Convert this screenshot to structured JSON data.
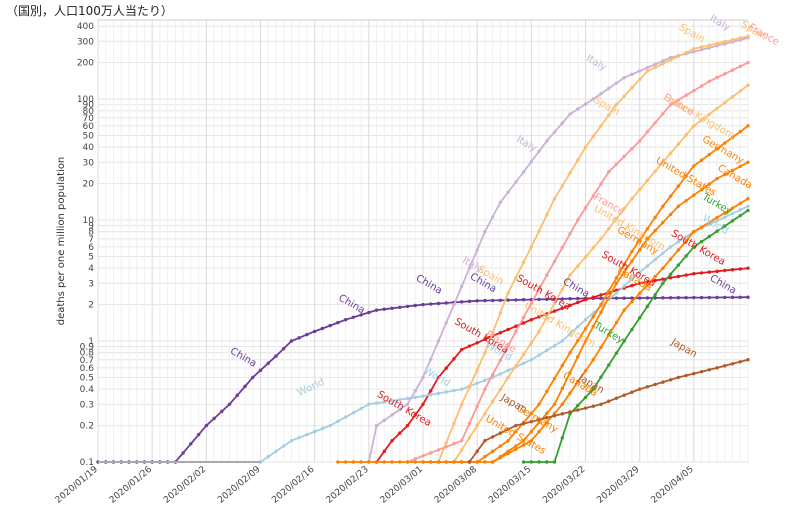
{
  "caption": "（国別，人口100万人当たり）",
  "chart_data": {
    "type": "line",
    "ylabel": "deaths per one million population",
    "yscale": "log",
    "ylim": [
      0.1,
      450
    ],
    "xlim": [
      "2020-01-19",
      "2020-04-12"
    ],
    "grid": true,
    "x_ticks": [
      "2020/01/19",
      "2020/01/26",
      "2020/02/02",
      "2020/02/09",
      "2020/02/16",
      "2020/02/23",
      "2020/03/01",
      "2020/03/08",
      "2020/03/15",
      "2020/03/22",
      "2020/03/29",
      "2020/04/05"
    ],
    "y_ticks": [
      "0.1",
      "0.2",
      "0.3",
      "0.4",
      "0.5",
      "0.6",
      "0.7",
      "0.8",
      "0.9",
      "1",
      "2",
      "3",
      "4",
      "5",
      "6",
      "7",
      "8",
      "9",
      "10",
      "20",
      "30",
      "40",
      "50",
      "60",
      "70",
      "80",
      "90",
      "100",
      "200",
      "300",
      "400"
    ],
    "series": [
      {
        "name": "China",
        "color": "#6a3d9a",
        "points": [
          [
            "2020-01-19",
            0.1
          ],
          [
            "2020-01-29",
            0.1
          ],
          [
            "2020-02-02",
            0.2
          ],
          [
            "2020-02-05",
            0.3
          ],
          [
            "2020-02-08",
            0.5
          ],
          [
            "2020-02-11",
            0.75
          ],
          [
            "2020-02-13",
            1.0
          ],
          [
            "2020-02-16",
            1.2
          ],
          [
            "2020-02-20",
            1.5
          ],
          [
            "2020-02-24",
            1.8
          ],
          [
            "2020-03-01",
            2.0
          ],
          [
            "2020-03-08",
            2.15
          ],
          [
            "2020-03-15",
            2.2
          ],
          [
            "2020-03-22",
            2.25
          ],
          [
            "2020-04-12",
            2.3
          ]
        ]
      },
      {
        "name": "South Korea",
        "color": "#e31a1c",
        "points": [
          [
            "2020-02-24",
            0.1
          ],
          [
            "2020-02-26",
            0.15
          ],
          [
            "2020-02-28",
            0.2
          ],
          [
            "2020-03-01",
            0.3
          ],
          [
            "2020-03-03",
            0.5
          ],
          [
            "2020-03-06",
            0.85
          ],
          [
            "2020-03-10",
            1.1
          ],
          [
            "2020-03-15",
            1.5
          ],
          [
            "2020-03-22",
            2.2
          ],
          [
            "2020-03-29",
            3.0
          ],
          [
            "2020-04-05",
            3.6
          ],
          [
            "2020-04-12",
            4.0
          ]
        ]
      },
      {
        "name": "World",
        "color": "#a6cee3",
        "points": [
          [
            "2020-02-09",
            0.1
          ],
          [
            "2020-02-13",
            0.15
          ],
          [
            "2020-02-18",
            0.2
          ],
          [
            "2020-02-23",
            0.3
          ],
          [
            "2020-03-01",
            0.35
          ],
          [
            "2020-03-06",
            0.4
          ],
          [
            "2020-03-10",
            0.5
          ],
          [
            "2020-03-15",
            0.7
          ],
          [
            "2020-03-19",
            1.0
          ],
          [
            "2020-03-22",
            1.5
          ],
          [
            "2020-03-26",
            2.5
          ],
          [
            "2020-03-29",
            3.7
          ],
          [
            "2020-04-02",
            6.0
          ],
          [
            "2020-04-05",
            8.0
          ],
          [
            "2020-04-12",
            13.0
          ]
        ]
      },
      {
        "name": "Italy",
        "color": "#cab2d6",
        "points": [
          [
            "2020-02-23",
            0.1
          ],
          [
            "2020-02-24",
            0.2
          ],
          [
            "2020-02-28",
            0.3
          ],
          [
            "2020-03-01",
            0.5
          ],
          [
            "2020-03-03",
            1.0
          ],
          [
            "2020-03-05",
            2.0
          ],
          [
            "2020-03-07",
            4.0
          ],
          [
            "2020-03-09",
            8.0
          ],
          [
            "2020-03-11",
            14.0
          ],
          [
            "2020-03-14",
            25.0
          ],
          [
            "2020-03-17",
            45.0
          ],
          [
            "2020-03-20",
            75.0
          ],
          [
            "2020-03-23",
            100.0
          ],
          [
            "2020-03-27",
            150.0
          ],
          [
            "2020-04-02",
            220.0
          ],
          [
            "2020-04-12",
            320.0
          ]
        ]
      },
      {
        "name": "Spain",
        "color": "#fdbf6f",
        "points": [
          [
            "2020-03-03",
            0.1
          ],
          [
            "2020-03-06",
            0.3
          ],
          [
            "2020-03-09",
            0.8
          ],
          [
            "2020-03-12",
            2.5
          ],
          [
            "2020-03-15",
            6.0
          ],
          [
            "2020-03-18",
            15.0
          ],
          [
            "2020-03-22",
            40.0
          ],
          [
            "2020-03-26",
            90.0
          ],
          [
            "2020-03-30",
            170.0
          ],
          [
            "2020-04-05",
            260.0
          ],
          [
            "2020-04-12",
            330.0
          ]
        ]
      },
      {
        "name": "France",
        "color": "#fb9a99",
        "points": [
          [
            "2020-02-28",
            0.1
          ],
          [
            "2020-03-06",
            0.15
          ],
          [
            "2020-03-09",
            0.4
          ],
          [
            "2020-03-13",
            1.2
          ],
          [
            "2020-03-17",
            3.5
          ],
          [
            "2020-03-21",
            10.0
          ],
          [
            "2020-03-25",
            25.0
          ],
          [
            "2020-03-29",
            45.0
          ],
          [
            "2020-04-02",
            90.0
          ],
          [
            "2020-04-07",
            140.0
          ],
          [
            "2020-04-12",
            200.0
          ]
        ]
      },
      {
        "name": "United Kingdom",
        "color": "#fdbf6f",
        "points": [
          [
            "2020-03-05",
            0.1
          ],
          [
            "2020-03-08",
            0.2
          ],
          [
            "2020-03-12",
            0.5
          ],
          [
            "2020-03-16",
            1.2
          ],
          [
            "2020-03-20",
            3.5
          ],
          [
            "2020-03-24",
            7.0
          ],
          [
            "2020-03-28",
            15.0
          ],
          [
            "2020-04-01",
            30.0
          ],
          [
            "2020-04-05",
            60.0
          ],
          [
            "2020-04-12",
            130.0
          ]
        ]
      },
      {
        "name": "United States",
        "color": "#ff7f00",
        "points": [
          [
            "2020-03-01",
            0.1
          ],
          [
            "2020-03-08",
            0.1
          ],
          [
            "2020-03-12",
            0.15
          ],
          [
            "2020-03-16",
            0.3
          ],
          [
            "2020-03-20",
            0.8
          ],
          [
            "2020-03-24",
            2.0
          ],
          [
            "2020-03-28",
            5.5
          ],
          [
            "2020-04-01",
            13.0
          ],
          [
            "2020-04-05",
            28.0
          ],
          [
            "2020-04-12",
            60.0
          ]
        ]
      },
      {
        "name": "Germany",
        "color": "#ff7f00",
        "points": [
          [
            "2020-02-19",
            0.1
          ],
          [
            "2020-03-10",
            0.1
          ],
          [
            "2020-03-14",
            0.15
          ],
          [
            "2020-03-18",
            0.3
          ],
          [
            "2020-03-22",
            1.0
          ],
          [
            "2020-03-26",
            3.0
          ],
          [
            "2020-03-30",
            7.0
          ],
          [
            "2020-04-03",
            13.0
          ],
          [
            "2020-04-08",
            22.0
          ],
          [
            "2020-04-12",
            30.0
          ]
        ]
      },
      {
        "name": "Canada",
        "color": "#ff7f00",
        "points": [
          [
            "2020-03-10",
            0.1
          ],
          [
            "2020-03-15",
            0.15
          ],
          [
            "2020-03-19",
            0.3
          ],
          [
            "2020-03-23",
            0.7
          ],
          [
            "2020-03-27",
            1.8
          ],
          [
            "2020-04-01",
            4.0
          ],
          [
            "2020-04-05",
            8.0
          ],
          [
            "2020-04-12",
            15.0
          ]
        ]
      },
      {
        "name": "Turkey",
        "color": "#33a02c",
        "points": [
          [
            "2020-03-14",
            0.1
          ],
          [
            "2020-03-18",
            0.1
          ],
          [
            "2020-03-20",
            0.25
          ],
          [
            "2020-03-23",
            0.4
          ],
          [
            "2020-03-27",
            1.0
          ],
          [
            "2020-04-01",
            3.0
          ],
          [
            "2020-04-05",
            6.0
          ],
          [
            "2020-04-12",
            12.0
          ]
        ]
      },
      {
        "name": "Japan",
        "color": "#b15928",
        "points": [
          [
            "2020-03-07",
            0.1
          ],
          [
            "2020-03-09",
            0.15
          ],
          [
            "2020-03-13",
            0.2
          ],
          [
            "2020-03-19",
            0.25
          ],
          [
            "2020-03-24",
            0.3
          ],
          [
            "2020-03-29",
            0.4
          ],
          [
            "2020-04-03",
            0.5
          ],
          [
            "2020-04-08",
            0.6
          ],
          [
            "2020-04-12",
            0.7
          ]
        ]
      }
    ],
    "labels": [
      {
        "text": "China",
        "color": "#6a3d9a",
        "x": "2020-02-05",
        "y": 0.8,
        "rot": 30
      },
      {
        "text": "China",
        "color": "#6a3d9a",
        "x": "2020-02-19",
        "y": 2.2,
        "rot": 30
      },
      {
        "text": "China",
        "color": "#6a3d9a",
        "x": "2020-02-29",
        "y": 3.2,
        "rot": 30
      },
      {
        "text": "China",
        "color": "#6a3d9a",
        "x": "2020-03-07",
        "y": 3.3,
        "rot": 30
      },
      {
        "text": "China",
        "color": "#6a3d9a",
        "x": "2020-03-19",
        "y": 3.0,
        "rot": 30
      },
      {
        "text": "China",
        "color": "#6a3d9a",
        "x": "2020-04-07",
        "y": 3.2,
        "rot": 30
      },
      {
        "text": "World",
        "color": "#a6cee3",
        "x": "2020-02-14",
        "y": 0.35,
        "rot": -25
      },
      {
        "text": "World",
        "color": "#a6cee3",
        "x": "2020-03-01",
        "y": 0.55,
        "rot": 30
      },
      {
        "text": "World",
        "color": "#a6cee3",
        "x": "2020-03-09",
        "y": 0.9,
        "rot": 30
      },
      {
        "text": "World",
        "color": "#a6cee3",
        "x": "2020-04-06",
        "y": 10.0,
        "rot": 30
      },
      {
        "text": "South Korea",
        "color": "#e31a1c",
        "x": "2020-02-24",
        "y": 0.35,
        "rot": 30
      },
      {
        "text": "South Korea",
        "color": "#e31a1c",
        "x": "2020-03-05",
        "y": 1.4,
        "rot": 30
      },
      {
        "text": "South Korea",
        "color": "#e31a1c",
        "x": "2020-03-13",
        "y": 3.2,
        "rot": 30
      },
      {
        "text": "South Korea",
        "color": "#e31a1c",
        "x": "2020-03-24",
        "y": 5.0,
        "rot": 30
      },
      {
        "text": "South Korea",
        "color": "#e31a1c",
        "x": "2020-04-02",
        "y": 7.5,
        "rot": 30
      },
      {
        "text": "Italy",
        "color": "#cab2d6",
        "x": "2020-03-06",
        "y": 4.5,
        "rot": 30
      },
      {
        "text": "Italy",
        "color": "#cab2d6",
        "x": "2020-03-13",
        "y": 45.0,
        "rot": 30
      },
      {
        "text": "Italy",
        "color": "#cab2d6",
        "x": "2020-03-22",
        "y": 210.0,
        "rot": 30
      },
      {
        "text": "Italy",
        "color": "#cab2d6",
        "x": "2020-04-07",
        "y": 450.0,
        "rot": 30
      },
      {
        "text": "Spain",
        "color": "#fdbf6f",
        "x": "2020-03-08",
        "y": 3.8,
        "rot": 30
      },
      {
        "text": "Spain",
        "color": "#fdbf6f",
        "x": "2020-03-23",
        "y": 95.0,
        "rot": 30
      },
      {
        "text": "Spain",
        "color": "#fdbf6f",
        "x": "2020-04-03",
        "y": 380.0,
        "rot": 30
      },
      {
        "text": "Spain",
        "color": "#fdbf6f",
        "x": "2020-04-11",
        "y": 400.0,
        "rot": 30
      },
      {
        "text": "France",
        "color": "#fb9a99",
        "x": "2020-03-09",
        "y": 1.1,
        "rot": 30
      },
      {
        "text": "France",
        "color": "#fb9a99",
        "x": "2020-03-23",
        "y": 15.0,
        "rot": 30
      },
      {
        "text": "France",
        "color": "#fb9a99",
        "x": "2020-04-01",
        "y": 100.0,
        "rot": 30
      },
      {
        "text": "France",
        "color": "#fb9a99",
        "x": "2020-04-12",
        "y": 380.0,
        "rot": 30
      },
      {
        "text": "United Kingdom",
        "color": "#fdbf6f",
        "x": "2020-03-23",
        "y": 12.0,
        "rot": 30
      },
      {
        "text": "United Kingdom",
        "color": "#fdbf6f",
        "x": "2020-03-14",
        "y": 1.9,
        "rot": 30
      },
      {
        "text": "United Kingdom",
        "color": "#fdbf6f",
        "x": "2020-04-01",
        "y": 100.0,
        "rot": 30
      },
      {
        "text": "United States",
        "color": "#ff7f00",
        "x": "2020-03-09",
        "y": 0.22,
        "rot": 30
      },
      {
        "text": "United States",
        "color": "#ff7f00",
        "x": "2020-03-31",
        "y": 30.0,
        "rot": 30
      },
      {
        "text": "Germany",
        "color": "#ff7f00",
        "x": "2020-03-13",
        "y": 0.27,
        "rot": 30
      },
      {
        "text": "Germany",
        "color": "#ff7f00",
        "x": "2020-03-26",
        "y": 8.0,
        "rot": 30
      },
      {
        "text": "Germany",
        "color": "#ff7f00",
        "x": "2020-04-06",
        "y": 45.0,
        "rot": 30
      },
      {
        "text": "Canada",
        "color": "#ff7f00",
        "x": "2020-03-19",
        "y": 0.5,
        "rot": 30
      },
      {
        "text": "Canada",
        "color": "#ff7f00",
        "x": "2020-03-26",
        "y": 3.7,
        "rot": 30
      },
      {
        "text": "Canada",
        "color": "#ff7f00",
        "x": "2020-04-08",
        "y": 26.0,
        "rot": 30
      },
      {
        "text": "Japan",
        "color": "#b15928",
        "x": "2020-03-11",
        "y": 0.33,
        "rot": 30
      },
      {
        "text": "Japan",
        "color": "#b15928",
        "x": "2020-03-21",
        "y": 0.48,
        "rot": 30
      },
      {
        "text": "Japan",
        "color": "#b15928",
        "x": "2020-04-02",
        "y": 0.95,
        "rot": 30
      },
      {
        "text": "Turkey",
        "color": "#33a02c",
        "x": "2020-03-23",
        "y": 1.3,
        "rot": 30
      },
      {
        "text": "Turkey",
        "color": "#33a02c",
        "x": "2020-04-06",
        "y": 15.0,
        "rot": 30
      }
    ]
  }
}
